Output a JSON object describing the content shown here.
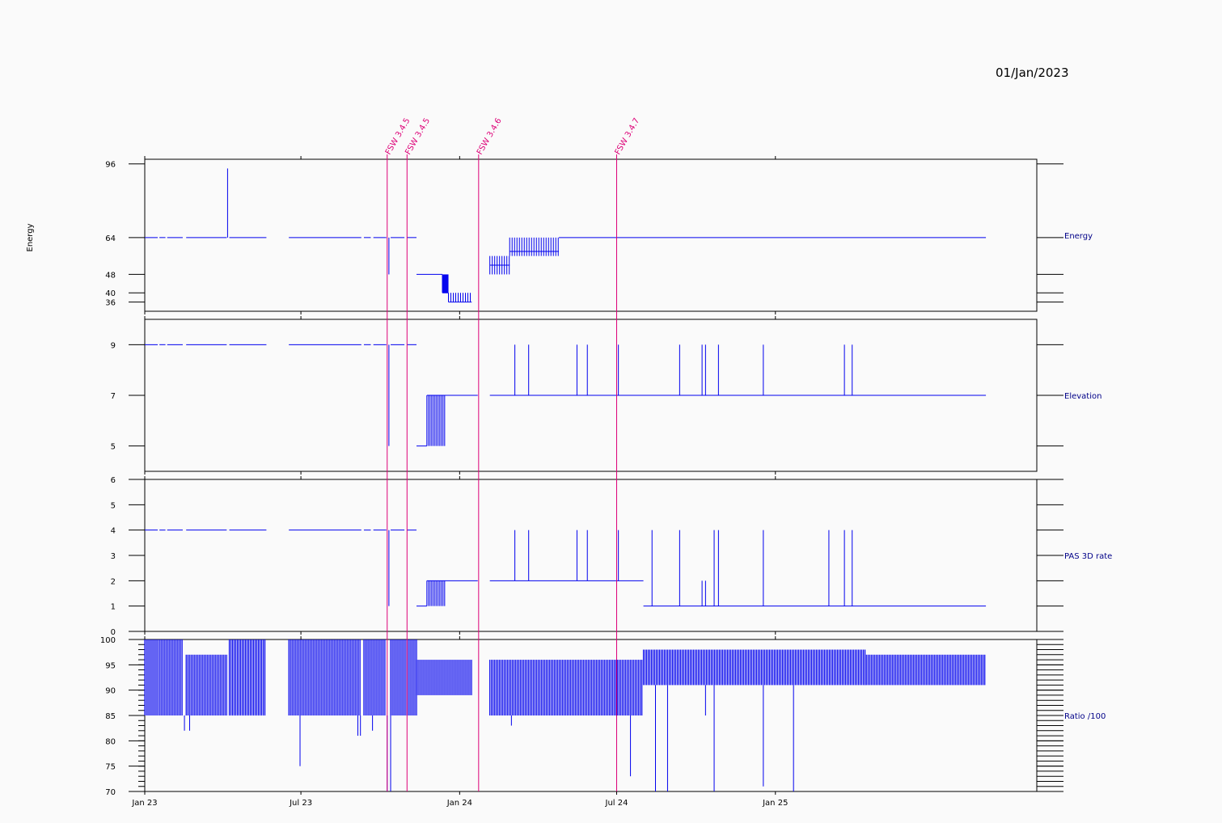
{
  "header": {
    "date": "01/Jan/2023"
  },
  "colors": {
    "data": "#0000ee",
    "event": "#dd0077",
    "axis": "#000000",
    "label": "#000088"
  },
  "events": [
    {
      "label": "FSW 3.4.5",
      "date": "2023-10-09"
    },
    {
      "label": "FSW 3.4.5",
      "date": "2023-11-01"
    },
    {
      "label": "FSW 3.4.6",
      "date": "2024-01-23"
    },
    {
      "label": "FSW 3.4.7",
      "date": "2024-07-01"
    }
  ],
  "chart_data": [
    {
      "type": "line",
      "name": "Energy",
      "ylabel": "Energy",
      "yticks": [
        36,
        40,
        48,
        64,
        96
      ],
      "ylim": [
        32,
        98
      ],
      "xlim": [
        "2023-01-01",
        "2025-10-31"
      ],
      "xticks": [
        {
          "label": "Jan 23",
          "date": "2023-01-01"
        },
        {
          "label": "Jul 23",
          "date": "2023-07-01"
        },
        {
          "label": "Jan 24",
          "date": "2024-01-01"
        },
        {
          "label": "Jul 24",
          "date": "2024-07-01"
        },
        {
          "label": "Jan 25",
          "date": "2025-01-01"
        }
      ],
      "segments": [
        {
          "x": [
            "2023-01-01",
            "2023-01-16"
          ],
          "y": 64
        },
        {
          "x": [
            "2023-01-18",
            "2023-01-25"
          ],
          "y": 64
        },
        {
          "x": [
            "2023-01-27",
            "2023-02-14"
          ],
          "y": 64
        },
        {
          "x": [
            "2023-02-18",
            "2023-04-06"
          ],
          "y": 64
        },
        {
          "x": [
            "2023-04-09",
            "2023-05-22"
          ],
          "y": 64
        },
        {
          "x": [
            "2023-06-17",
            "2023-09-09"
          ],
          "y": 64
        },
        {
          "x": [
            "2023-09-12",
            "2023-09-20"
          ],
          "y": 64
        },
        {
          "x": [
            "2023-09-23",
            "2023-10-08"
          ],
          "y": 64
        },
        {
          "x": [
            "2023-10-13",
            "2023-10-29"
          ],
          "y": 64
        },
        {
          "x": [
            "2023-11-01",
            "2023-11-12"
          ],
          "y": 64
        },
        {
          "x": [
            "2023-11-12",
            "2023-12-12"
          ],
          "y": 48
        },
        {
          "x": [
            "2023-12-12",
            "2023-12-19"
          ],
          "y": 40
        },
        {
          "x": [
            "2023-12-19",
            "2024-01-15"
          ],
          "y": 36
        },
        {
          "x": [
            "2024-02-05",
            "2024-02-28"
          ],
          "y": 52
        },
        {
          "x": [
            "2024-02-28",
            "2024-04-25"
          ],
          "y": 58
        },
        {
          "x": [
            "2024-04-25",
            "2025-09-02"
          ],
          "y": 64
        }
      ],
      "spikes": [
        {
          "x": "2023-04-07",
          "from": 64,
          "to": 94
        },
        {
          "x": "2023-10-11",
          "from": 48,
          "to": 64
        }
      ],
      "dense": [
        {
          "x": [
            "2023-12-12",
            "2023-12-19"
          ],
          "from": 40,
          "to": 48,
          "step": 1
        },
        {
          "x": [
            "2023-12-19",
            "2024-01-15"
          ],
          "from": 36,
          "to": 40,
          "step": 3
        },
        {
          "x": [
            "2024-02-05",
            "2024-02-28"
          ],
          "from": 48,
          "to": 56,
          "step": 3
        },
        {
          "x": [
            "2024-02-28",
            "2024-04-25"
          ],
          "from": 56,
          "to": 64,
          "step": 3
        }
      ],
      "right_label": "Energy"
    },
    {
      "type": "line",
      "name": "Elevation",
      "yticks": [
        5,
        7,
        9
      ],
      "ylim": [
        4,
        10
      ],
      "segments": [
        {
          "x": [
            "2023-01-01",
            "2023-01-16"
          ],
          "y": 9
        },
        {
          "x": [
            "2023-01-18",
            "2023-01-25"
          ],
          "y": 9
        },
        {
          "x": [
            "2023-01-27",
            "2023-02-14"
          ],
          "y": 9
        },
        {
          "x": [
            "2023-02-18",
            "2023-04-06"
          ],
          "y": 9
        },
        {
          "x": [
            "2023-04-09",
            "2023-05-22"
          ],
          "y": 9
        },
        {
          "x": [
            "2023-06-17",
            "2023-09-09"
          ],
          "y": 9
        },
        {
          "x": [
            "2023-09-12",
            "2023-09-20"
          ],
          "y": 9
        },
        {
          "x": [
            "2023-09-23",
            "2023-10-08"
          ],
          "y": 9
        },
        {
          "x": [
            "2023-10-13",
            "2023-10-29"
          ],
          "y": 9
        },
        {
          "x": [
            "2023-11-01",
            "2023-11-12"
          ],
          "y": 9
        },
        {
          "x": [
            "2023-11-12",
            "2023-11-24"
          ],
          "y": 5
        },
        {
          "x": [
            "2023-11-24",
            "2024-01-22"
          ],
          "y": 7
        },
        {
          "x": [
            "2024-02-05",
            "2025-09-02"
          ],
          "y": 7
        }
      ],
      "spikes": [
        {
          "x": "2023-10-11",
          "from": 5,
          "to": 9
        },
        {
          "x": "2024-03-05",
          "from": 7,
          "to": 9
        },
        {
          "x": "2024-03-21",
          "from": 7,
          "to": 9
        },
        {
          "x": "2024-05-16",
          "from": 7,
          "to": 9
        },
        {
          "x": "2024-05-28",
          "from": 7,
          "to": 9
        },
        {
          "x": "2024-07-03",
          "from": 7,
          "to": 9
        },
        {
          "x": "2024-09-12",
          "from": 7,
          "to": 9
        },
        {
          "x": "2024-10-08",
          "from": 7,
          "to": 9
        },
        {
          "x": "2024-10-12",
          "from": 7,
          "to": 9
        },
        {
          "x": "2024-10-27",
          "from": 7,
          "to": 9
        },
        {
          "x": "2024-12-18",
          "from": 7,
          "to": 9
        },
        {
          "x": "2025-03-22",
          "from": 7,
          "to": 9
        },
        {
          "x": "2025-03-31",
          "from": 7,
          "to": 9
        }
      ],
      "dense": [
        {
          "x": [
            "2023-11-24",
            "2023-12-15"
          ],
          "from": 5,
          "to": 7,
          "step": 2
        }
      ],
      "right_label": "Elevation"
    },
    {
      "type": "line",
      "name": "PAS 3D rate",
      "yticks": [
        0,
        1,
        2,
        3,
        4,
        5,
        6
      ],
      "ylim": [
        0,
        6
      ],
      "segments": [
        {
          "x": [
            "2023-01-01",
            "2023-01-16"
          ],
          "y": 4
        },
        {
          "x": [
            "2023-01-18",
            "2023-01-25"
          ],
          "y": 4
        },
        {
          "x": [
            "2023-01-27",
            "2023-02-14"
          ],
          "y": 4
        },
        {
          "x": [
            "2023-02-18",
            "2023-04-06"
          ],
          "y": 4
        },
        {
          "x": [
            "2023-04-09",
            "2023-05-22"
          ],
          "y": 4
        },
        {
          "x": [
            "2023-06-17",
            "2023-09-09"
          ],
          "y": 4
        },
        {
          "x": [
            "2023-09-12",
            "2023-09-20"
          ],
          "y": 4
        },
        {
          "x": [
            "2023-09-23",
            "2023-10-08"
          ],
          "y": 4
        },
        {
          "x": [
            "2023-10-13",
            "2023-10-29"
          ],
          "y": 4
        },
        {
          "x": [
            "2023-11-01",
            "2023-11-12"
          ],
          "y": 4
        },
        {
          "x": [
            "2023-11-12",
            "2023-11-24"
          ],
          "y": 1
        },
        {
          "x": [
            "2023-11-24",
            "2024-01-22"
          ],
          "y": 2
        },
        {
          "x": [
            "2024-02-05",
            "2024-08-01"
          ],
          "y": 2
        },
        {
          "x": [
            "2024-08-01",
            "2025-09-02"
          ],
          "y": 1
        }
      ],
      "spikes": [
        {
          "x": "2023-10-11",
          "from": 1,
          "to": 4
        },
        {
          "x": "2024-03-05",
          "from": 2,
          "to": 4
        },
        {
          "x": "2024-03-21",
          "from": 2,
          "to": 4
        },
        {
          "x": "2024-05-16",
          "from": 2,
          "to": 4
        },
        {
          "x": "2024-05-28",
          "from": 2,
          "to": 4
        },
        {
          "x": "2024-07-03",
          "from": 2,
          "to": 4
        },
        {
          "x": "2024-08-11",
          "from": 1,
          "to": 4
        },
        {
          "x": "2024-09-12",
          "from": 1,
          "to": 4
        },
        {
          "x": "2024-10-08",
          "from": 1,
          "to": 2
        },
        {
          "x": "2024-10-12",
          "from": 1,
          "to": 2
        },
        {
          "x": "2024-10-22",
          "from": 1,
          "to": 4
        },
        {
          "x": "2024-10-27",
          "from": 1,
          "to": 4
        },
        {
          "x": "2024-12-18",
          "from": 1,
          "to": 4
        },
        {
          "x": "2025-03-04",
          "from": 1,
          "to": 4
        },
        {
          "x": "2025-03-22",
          "from": 1,
          "to": 4
        },
        {
          "x": "2025-03-31",
          "from": 1,
          "to": 4
        }
      ],
      "dense": [
        {
          "x": [
            "2023-11-24",
            "2023-12-15"
          ],
          "from": 1,
          "to": 2,
          "step": 2
        }
      ],
      "right_label": "PAS 3D rate"
    },
    {
      "type": "bar",
      "name": "Ratio /100",
      "yticks": [
        70,
        75,
        80,
        85,
        90,
        95,
        100
      ],
      "ylim": [
        70,
        100
      ],
      "bands": [
        {
          "x": [
            "2023-01-01",
            "2023-01-16"
          ],
          "low": 85,
          "high": 100,
          "step": 2
        },
        {
          "x": [
            "2023-01-18",
            "2023-02-14"
          ],
          "low": 85,
          "high": 100,
          "step": 2
        },
        {
          "x": [
            "2023-02-18",
            "2023-04-06"
          ],
          "low": 85,
          "high": 97,
          "step": 2
        },
        {
          "x": [
            "2023-04-09",
            "2023-05-22"
          ],
          "low": 85,
          "high": 100,
          "step": 2
        },
        {
          "x": [
            "2023-06-17",
            "2023-09-09"
          ],
          "low": 85,
          "high": 100,
          "step": 2
        },
        {
          "x": [
            "2023-09-12",
            "2023-10-08"
          ],
          "low": 85,
          "high": 100,
          "step": 2
        },
        {
          "x": [
            "2023-10-13",
            "2023-11-12"
          ],
          "low": 85,
          "high": 100,
          "step": 2
        },
        {
          "x": [
            "2023-11-12",
            "2024-01-15"
          ],
          "low": 89,
          "high": 96,
          "step": 2
        },
        {
          "x": [
            "2024-02-05",
            "2024-08-01"
          ],
          "low": 85,
          "high": 96,
          "step": 2
        },
        {
          "x": [
            "2024-08-01",
            "2025-04-15"
          ],
          "low": 91,
          "high": 98,
          "step": 2
        },
        {
          "x": [
            "2025-04-15",
            "2025-09-02"
          ],
          "low": 91,
          "high": 97,
          "step": 2
        }
      ],
      "spikes": [
        {
          "x": "2023-02-16",
          "from": 85,
          "to": 82
        },
        {
          "x": "2023-02-22",
          "from": 85,
          "to": 82
        },
        {
          "x": "2023-06-30",
          "from": 85,
          "to": 75
        },
        {
          "x": "2023-09-05",
          "from": 85,
          "to": 81
        },
        {
          "x": "2023-09-08",
          "from": 85,
          "to": 81
        },
        {
          "x": "2023-09-22",
          "from": 85,
          "to": 82
        },
        {
          "x": "2023-10-09",
          "from": 85,
          "to": 70
        },
        {
          "x": "2023-10-13",
          "from": 85,
          "to": 70
        },
        {
          "x": "2024-03-01",
          "from": 85,
          "to": 83
        },
        {
          "x": "2024-07-01",
          "from": 85,
          "to": 70
        },
        {
          "x": "2024-07-17",
          "from": 85,
          "to": 73
        },
        {
          "x": "2024-08-15",
          "from": 91,
          "to": 70
        },
        {
          "x": "2024-08-29",
          "from": 91,
          "to": 70
        },
        {
          "x": "2024-10-12",
          "from": 91,
          "to": 85
        },
        {
          "x": "2024-10-22",
          "from": 91,
          "to": 70
        },
        {
          "x": "2024-12-18",
          "from": 91,
          "to": 71
        },
        {
          "x": "2025-01-22",
          "from": 91,
          "to": 70
        }
      ],
      "right_label": "Ratio /100"
    }
  ]
}
